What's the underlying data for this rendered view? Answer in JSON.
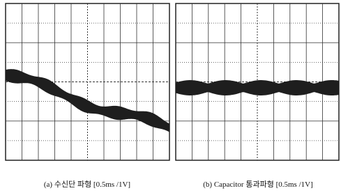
{
  "panels": [
    {
      "caption": "(a) 수신단 파형 [0.5ms /1V]"
    },
    {
      "caption": "(b) Capacitor 통과파형 [0.5ms /1V]"
    }
  ]
}
